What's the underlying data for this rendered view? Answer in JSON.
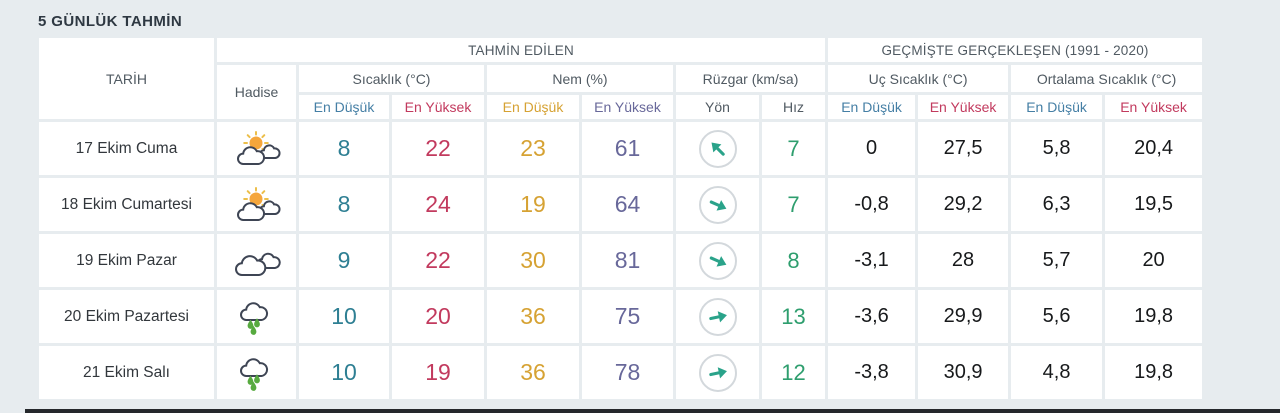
{
  "page": {
    "title": "5 GÜNLÜK TAHMİN"
  },
  "table": {
    "date_header": "TARİH",
    "condition_header": "Hadise",
    "group_forecast": "TAHMİN EDİLEN",
    "group_history": "GEÇMİŞTE GERÇEKLEŞEN (1991 - 2020)",
    "col_temp": "Sıcaklık (°C)",
    "col_humidity": "Nem (%)",
    "col_wind": "Rüzgar (km/sa)",
    "col_extreme": "Uç Sıcaklık (°C)",
    "col_avg": "Ortalama Sıcaklık (°C)",
    "sub_min": "En Düşük",
    "sub_max": "En Yüksek",
    "sub_dir": "Yön",
    "sub_speed": "Hız"
  },
  "rows": [
    {
      "date": "17 Ekim Cuma",
      "condition": "partly-cloudy",
      "temp_min": "8",
      "temp_max": "22",
      "hum_min": "23",
      "hum_max": "61",
      "wind_dir_deg": -135,
      "wind_speed": "7",
      "ext_min": "0",
      "ext_max": "27,5",
      "avg_min": "5,8",
      "avg_max": "20,4"
    },
    {
      "date": "18 Ekim Cumartesi",
      "condition": "partly-cloudy",
      "temp_min": "8",
      "temp_max": "24",
      "hum_min": "19",
      "hum_max": "64",
      "wind_dir_deg": 24,
      "wind_speed": "7",
      "ext_min": "-0,8",
      "ext_max": "29,2",
      "avg_min": "6,3",
      "avg_max": "19,5"
    },
    {
      "date": "19 Ekim Pazar",
      "condition": "cloudy",
      "temp_min": "9",
      "temp_max": "22",
      "hum_min": "30",
      "hum_max": "81",
      "wind_dir_deg": 24,
      "wind_speed": "8",
      "ext_min": "-3,1",
      "ext_max": "28",
      "avg_min": "5,7",
      "avg_max": "20"
    },
    {
      "date": "20 Ekim Pazartesi",
      "condition": "rainy",
      "temp_min": "10",
      "temp_max": "20",
      "hum_min": "36",
      "hum_max": "75",
      "wind_dir_deg": -12,
      "wind_speed": "13",
      "ext_min": "-3,6",
      "ext_max": "29,9",
      "avg_min": "5,6",
      "avg_max": "19,8"
    },
    {
      "date": "21 Ekim Salı",
      "condition": "rainy",
      "temp_min": "10",
      "temp_max": "19",
      "hum_min": "36",
      "hum_max": "78",
      "wind_dir_deg": -12,
      "wind_speed": "12",
      "ext_min": "-3,8",
      "ext_max": "30,9",
      "avg_min": "4,8",
      "avg_max": "19,8"
    }
  ],
  "colors": {
    "page_bg": "#e7ecef",
    "cell_bg": "#ffffff",
    "title_text": "#2e3842",
    "header_text": "#505a62",
    "date_text": "#32373c",
    "history_value_text": "#17191b",
    "min_blue": "#457fa5",
    "max_red": "#c23a5e",
    "hum_min_orange": "#d6a233",
    "hum_max_purple": "#68689a",
    "value_temp_min": "#2e7f93",
    "wind_speed_green": "#2e9e6e",
    "arrow_teal": "#2aa38a",
    "circle_border": "#d3d8dc",
    "bottom_bar": "#25282c",
    "sun_fill": "#f5a63b",
    "sun_ray": "#ecbf4a",
    "cloud_outline": "#3e4554",
    "drop_green": "#57aa3f"
  }
}
